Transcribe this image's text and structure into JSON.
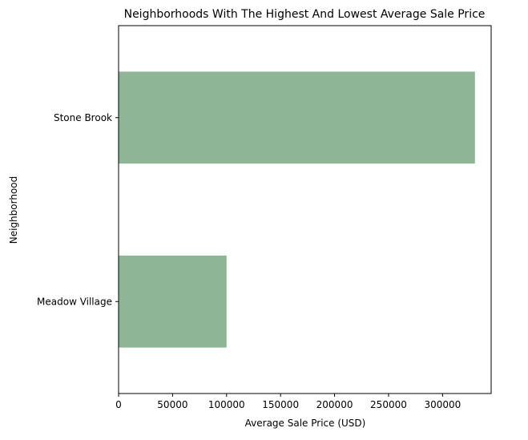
{
  "chart_data": {
    "type": "bar",
    "orientation": "horizontal",
    "title": "Neighborhoods With The Highest And Lowest Average Sale Price",
    "xlabel": "Average Sale Price (USD)",
    "ylabel": "Neighborhood",
    "categories": [
      "Meadow Village",
      "Stone Brook"
    ],
    "values": [
      100000,
      330000
    ],
    "xlim": [
      0,
      345000
    ],
    "xticks": [
      0,
      50000,
      100000,
      150000,
      200000,
      250000,
      300000
    ],
    "xtick_labels": [
      "0",
      "50000",
      "100000",
      "150000",
      "200000",
      "250000",
      "300000"
    ],
    "bar_color": "#8db596",
    "grid": false,
    "legend": "none"
  }
}
